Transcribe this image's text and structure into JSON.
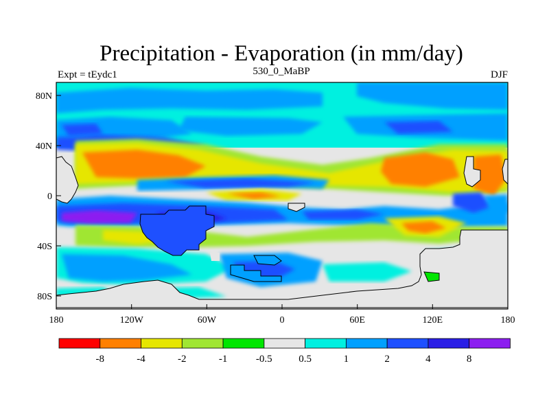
{
  "title": "Precipitation - Evaporation (in mm/day)",
  "left_label": "Expt = tEydc1",
  "center_label": "530_0_MaBP",
  "right_label": "DJF",
  "map": {
    "lon_ticks": [
      "180",
      "120W",
      "60W",
      "0",
      "60E",
      "120E",
      "180"
    ],
    "lat_ticks": [
      "80N",
      "40N",
      "0",
      "40S",
      "80S"
    ]
  },
  "colorbar": {
    "colors": [
      "#ff0000",
      "#ff8000",
      "#e6e600",
      "#a0e632",
      "#00e600",
      "#e6e6e6",
      "#00f0e0",
      "#00a0ff",
      "#1e50ff",
      "#2a1ee6",
      "#8c1ef0"
    ],
    "labels": [
      "-8",
      "-4",
      "-2",
      "-1",
      "-0.5",
      "0.5",
      "1",
      "2",
      "4",
      "8"
    ]
  }
}
